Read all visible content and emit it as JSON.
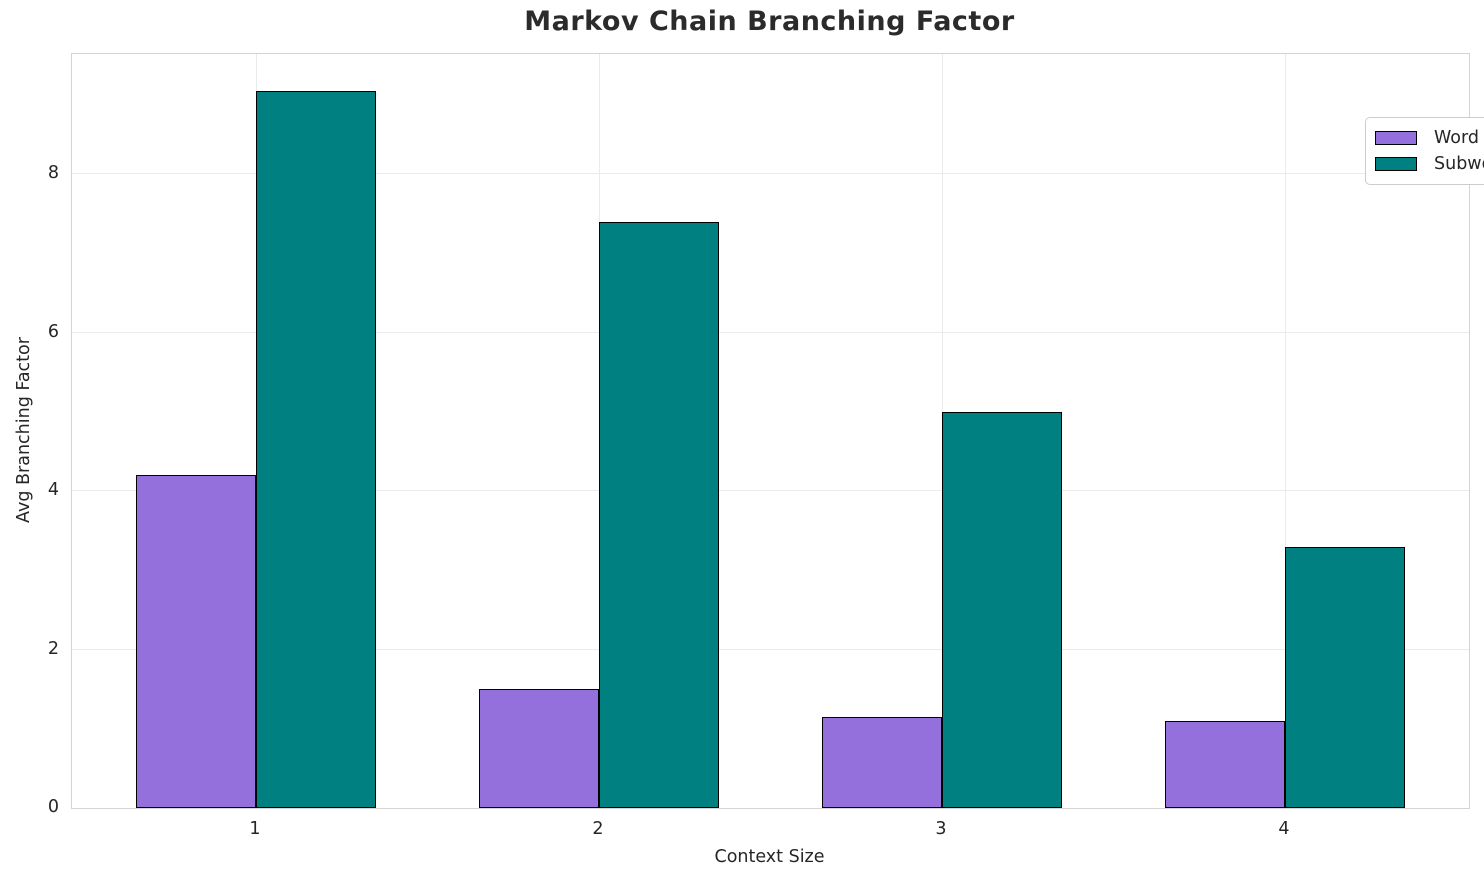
{
  "chart_data": {
    "type": "bar",
    "title": "Markov Chain Branching Factor",
    "xlabel": "Context Size",
    "ylabel": "Avg Branching Factor",
    "categories": [
      "1",
      "2",
      "3",
      "4"
    ],
    "series": [
      {
        "name": "Word",
        "color": "#9370DB",
        "values": [
          4.2,
          1.5,
          1.15,
          1.1
        ]
      },
      {
        "name": "Subword",
        "color": "#008080",
        "values": [
          9.05,
          7.4,
          5.0,
          3.3
        ]
      }
    ],
    "yticks": [
      0,
      2,
      4,
      6,
      8
    ],
    "ylim": [
      0,
      9.52
    ],
    "grid": true,
    "legend_position": "upper right",
    "bar_edge_color": "#000000",
    "grid_color": "#ebebeb",
    "spine_color": "#d4d4d4",
    "text_color": "#262626"
  }
}
